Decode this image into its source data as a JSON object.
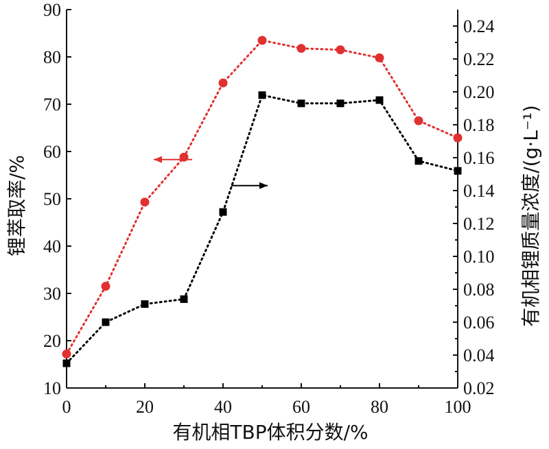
{
  "chart_data": {
    "type": "line",
    "xlabel": "有机相TBP体积分数/%",
    "ylabel_left": "锂萃取率/%",
    "ylabel_right": "有机相锂质量浓度/(g·L⁻¹)",
    "xlim": [
      0,
      100
    ],
    "ylim_left": [
      10,
      90
    ],
    "ylim_right": [
      0.02,
      0.25
    ],
    "x_ticks": [
      "0",
      "20",
      "40",
      "60",
      "80",
      "100"
    ],
    "y_left_ticks": [
      "10",
      "20",
      "30",
      "40",
      "50",
      "60",
      "70",
      "80",
      "90"
    ],
    "y_right_ticks": [
      "0.02",
      "0.04",
      "0.06",
      "0.08",
      "0.10",
      "0.12",
      "0.14",
      "0.16",
      "0.18",
      "0.20",
      "0.22",
      "0.24"
    ],
    "grid": false,
    "series": [
      {
        "axis": "left",
        "marker": "circle",
        "line": "dotted",
        "color": "#e03030",
        "x": [
          0,
          10,
          20,
          30,
          40,
          50,
          60,
          70,
          80,
          90,
          100
        ],
        "y": [
          17.2,
          31.5,
          49.3,
          58.8,
          74.5,
          83.5,
          81.8,
          81.5,
          79.8,
          66.5,
          62.9
        ]
      },
      {
        "axis": "right",
        "marker": "square",
        "line": "dotted",
        "color": "#000000",
        "x": [
          0,
          10,
          20,
          30,
          40,
          50,
          60,
          70,
          80,
          90,
          100
        ],
        "y": [
          0.035,
          0.06,
          0.071,
          0.074,
          0.127,
          0.198,
          0.193,
          0.193,
          0.195,
          0.158,
          0.152
        ]
      }
    ],
    "annotations": [
      {
        "type": "arrow",
        "direction": "left",
        "color": "#e03030",
        "points_to_axis": "left"
      },
      {
        "type": "arrow",
        "direction": "right",
        "color": "#000000",
        "points_to_axis": "right"
      }
    ]
  }
}
